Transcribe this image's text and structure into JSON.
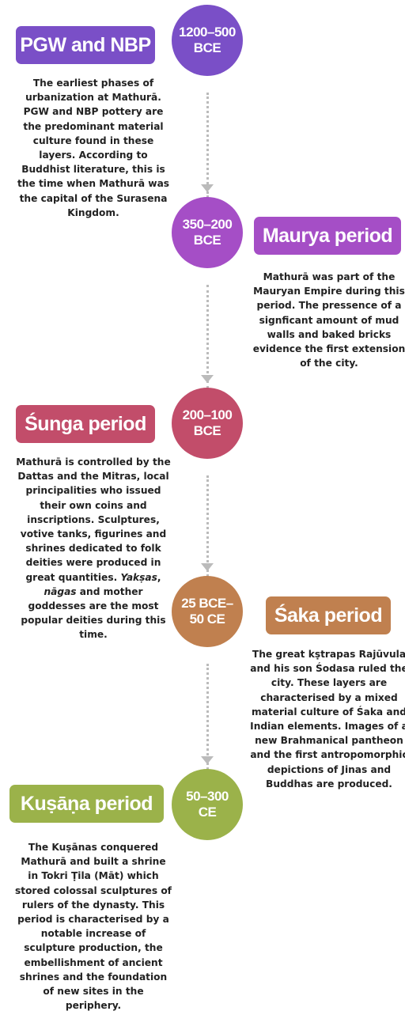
{
  "timeline": [
    {
      "date": "1200–500 BCE",
      "title": "PGW and NBP",
      "color": "#7a4fc7",
      "circle_color": "#7a4fc7",
      "description": [
        {
          "text": "The earliest phases of urbanization at Mathurā. PGW and NBP pottery are the predominant material culture found in these layers. According to Buddhist literature, this is the time when Mathurā was the capital of the Surasena Kingdom.",
          "italic": false
        }
      ]
    },
    {
      "date": "350–200 BCE",
      "title": "Maurya period",
      "color": "#a54ec6",
      "circle_color": "#a54ec6",
      "description": [
        {
          "text": "Mathurā was part  of the Mauryan Empire during this period. The pressence of a signficant amount of mud walls and baked bricks evidence the first extension of the city.",
          "italic": false
        }
      ]
    },
    {
      "date": "200–100 BCE",
      "title": "Śunga period",
      "color": "#c24d6a",
      "circle_color": "#c24d6a",
      "description": [
        {
          "text": "Mathurā is controlled by the Dattas and the Mitras, local principalities who issued their own coins and inscriptions. Sculptures, votive tanks, figurines and shrines dedicated to folk deities were produced in great quantities. ",
          "italic": false
        },
        {
          "text": "Yakṣas",
          "italic": true
        },
        {
          "text": ", ",
          "italic": false
        },
        {
          "text": "nāgas",
          "italic": true
        },
        {
          "text": " and mother goddesses are the most popular deities during this time.",
          "italic": false
        }
      ]
    },
    {
      "date": "25 BCE–50 CE",
      "title": "Śaka period",
      "color": "#c0804f",
      "circle_color": "#c0804f",
      "description": [
        {
          "text": "The great kṣtrapas Rajūvula and his son Śodasa ruled the city. These layers are characterised by a mixed material culture of Śaka and Indian elements. Images of a new Brahmanical pantheon and the first antropomorphic depictions of Jinas and Buddhas are produced.",
          "italic": false
        }
      ]
    },
    {
      "date": "50–300 CE",
      "title": "Kuṣāṇa period",
      "color": "#9bb24a",
      "circle_color": "#9bb24a",
      "description": [
        {
          "text": "The Kuṣānas conquered Mathurā and built a shrine in Tokri Ṭila (Māt) which stored colossal sculptures of rulers of the dynasty. This period is characterised by a notable increase of sculpture production, the embellishment of ancient shrines and the foundation of new sites in the periphery.",
          "italic": false
        }
      ]
    }
  ]
}
